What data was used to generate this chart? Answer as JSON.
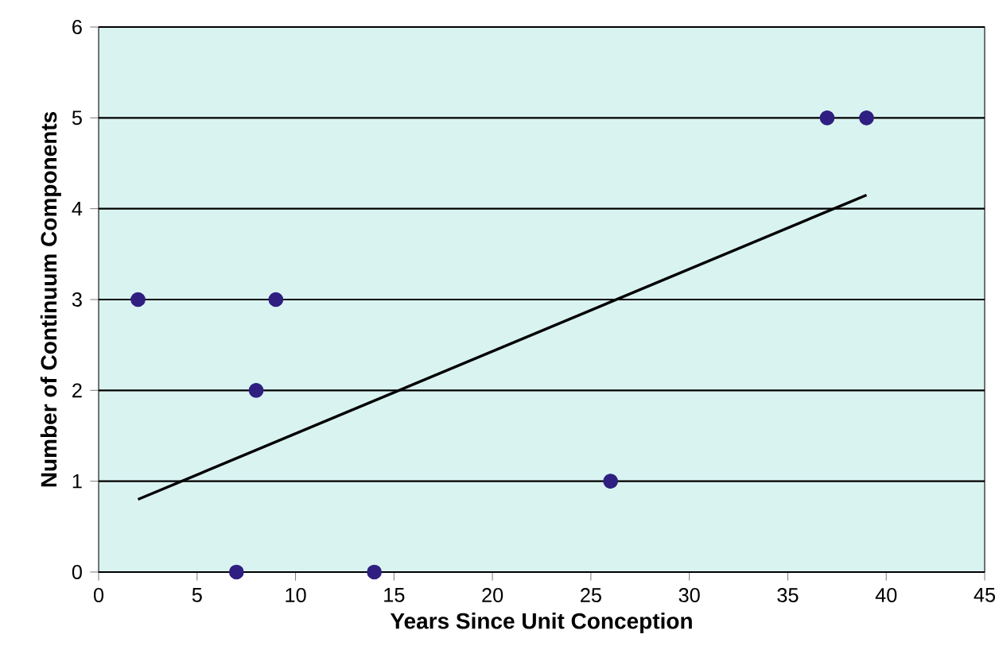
{
  "chart_data": {
    "type": "scatter",
    "xlabel": "Years Since Unit Conception",
    "ylabel": "Number of Continuum Components",
    "series": [
      {
        "color": "#2e1f80",
        "marker": "circle",
        "x": [
          2,
          7,
          8,
          9,
          14,
          26,
          37,
          39
        ],
        "values": [
          3,
          0,
          2,
          3,
          0,
          1,
          5,
          5
        ]
      },
      {
        "type": "line",
        "color": "#000000",
        "marker": "none",
        "line_style": "solid",
        "x": [
          2,
          39
        ],
        "values": [
          0.8,
          4.15
        ]
      }
    ],
    "xlim": [
      0,
      45
    ],
    "ylim": [
      0,
      6
    ],
    "xticks": [
      0,
      5,
      10,
      15,
      20,
      25,
      30,
      35,
      40,
      45
    ],
    "yticks": [
      0,
      1,
      2,
      3,
      4,
      5,
      6
    ],
    "grid": "y"
  }
}
